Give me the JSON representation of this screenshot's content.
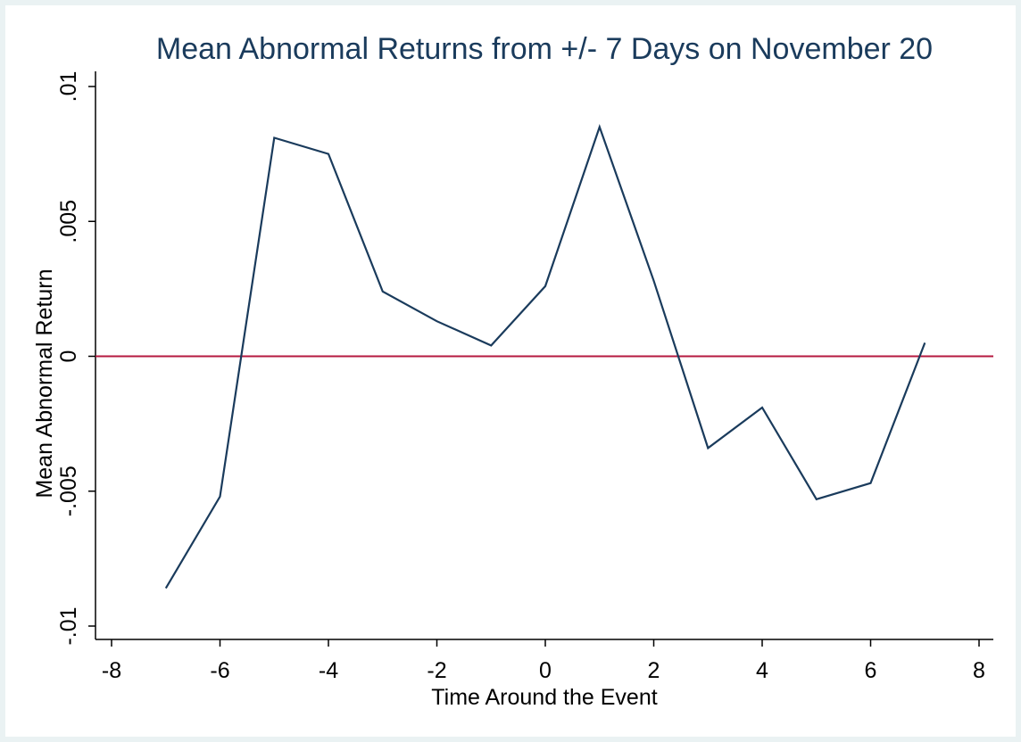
{
  "chart_data": {
    "type": "line",
    "title": "Mean Abnormal Returns from +/- 7 Days on November 20",
    "xlabel": "Time Around the Event",
    "ylabel": "Mean Abnormal Return",
    "xlim": [
      -8,
      8
    ],
    "ylim": [
      -0.01,
      0.01
    ],
    "x_ticks": [
      -8,
      -6,
      -4,
      -2,
      0,
      2,
      4,
      6,
      8
    ],
    "x_tick_labels": [
      "-8",
      "-6",
      "-4",
      "-2",
      "0",
      "2",
      "4",
      "6",
      "8"
    ],
    "y_ticks": [
      -0.01,
      -0.005,
      0,
      0.005,
      0.01
    ],
    "y_tick_labels": [
      "-.01",
      "-.005",
      "0",
      ".005",
      ".01"
    ],
    "grid": false,
    "reference_line": {
      "y": 0,
      "color": "#b5193f"
    },
    "series": [
      {
        "color": "#1a3b5c",
        "x": [
          -7,
          -6,
          -5,
          -4,
          -3,
          -2,
          -1,
          0,
          1,
          2,
          3,
          4,
          5,
          6,
          7
        ],
        "y": [
          -0.0086,
          -0.0052,
          0.0081,
          0.0075,
          0.0024,
          0.0013,
          0.0004,
          0.0026,
          0.0085,
          0.0028,
          -0.0034,
          -0.0019,
          -0.0053,
          -0.0047,
          0.0005
        ]
      }
    ]
  }
}
